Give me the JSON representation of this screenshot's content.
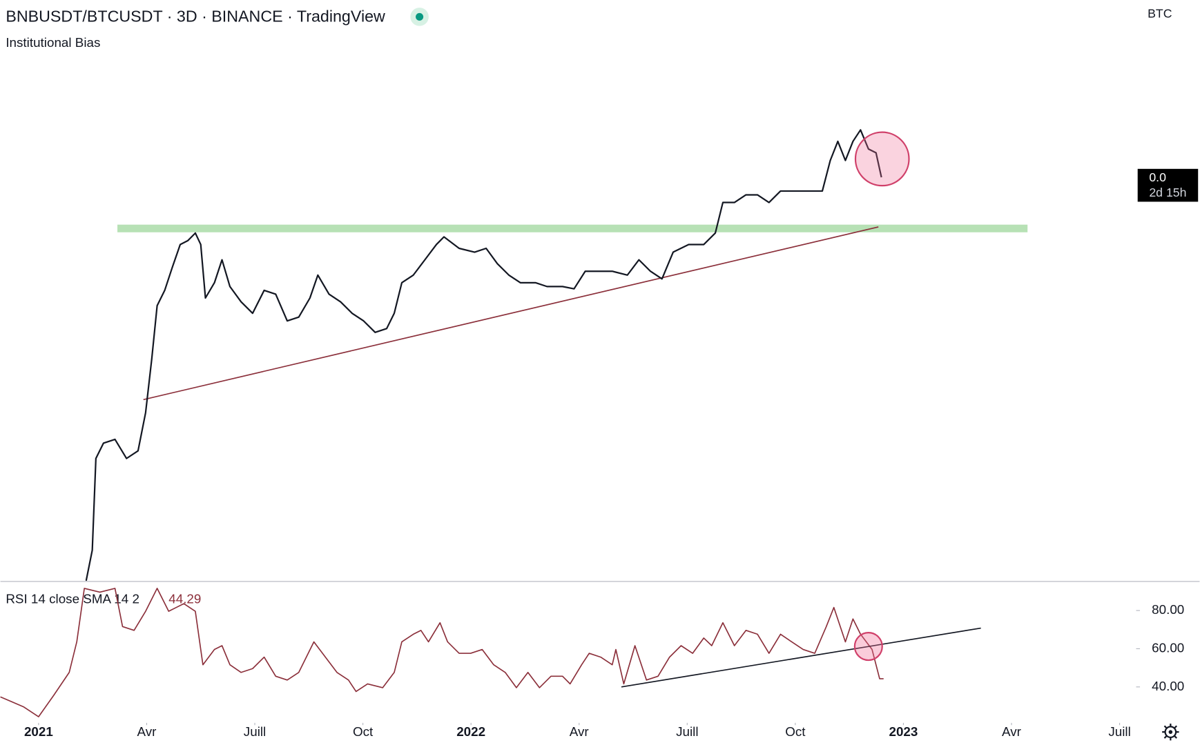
{
  "chart_data": [
    {
      "type": "line",
      "title": "BNBUSDT/BTCUSDT · 3D · BINANCE · TradingView",
      "subtitle": "Institutional Bias",
      "currency": "BTC",
      "last_label": "0.0",
      "countdown": "2d 15h",
      "color": "#131722",
      "xlim": [
        -1.06,
        32.22
      ],
      "ylim": [
        0,
        660
      ],
      "x": [
        1.32,
        1.49,
        1.59,
        1.8,
        2.12,
        2.44,
        2.76,
        2.97,
        3.14,
        3.29,
        3.5,
        3.71,
        3.93,
        4.14,
        4.35,
        4.5,
        4.63,
        4.88,
        5.09,
        5.31,
        5.62,
        5.94,
        6.26,
        6.58,
        6.9,
        7.22,
        7.53,
        7.75,
        8.06,
        8.38,
        8.7,
        9.02,
        9.34,
        9.66,
        9.87,
        10.08,
        10.4,
        10.72,
        11.04,
        11.25,
        11.67,
        12.1,
        12.42,
        12.73,
        13.05,
        13.37,
        13.79,
        14.11,
        14.54,
        14.86,
        15.17,
        15.49,
        15.92,
        16.34,
        16.66,
        16.98,
        17.3,
        17.61,
        18.04,
        18.46,
        18.78,
        18.99,
        19.31,
        19.63,
        19.95,
        20.27,
        20.59,
        21.01,
        21.43,
        21.75,
        21.97,
        22.18,
        22.39,
        22.6,
        22.81,
        23.03,
        23.24,
        23.39
      ],
      "values": [
        0,
        40,
        160,
        180,
        185,
        160,
        170,
        220,
        290,
        360,
        380,
        410,
        440,
        445,
        455,
        440,
        370,
        390,
        420,
        385,
        365,
        350,
        380,
        375,
        340,
        345,
        370,
        400,
        375,
        365,
        350,
        340,
        325,
        330,
        350,
        390,
        400,
        420,
        440,
        450,
        435,
        430,
        435,
        415,
        400,
        390,
        390,
        385,
        385,
        382,
        405,
        405,
        405,
        400,
        420,
        405,
        395,
        430,
        440,
        440,
        455,
        495,
        495,
        505,
        505,
        495,
        510,
        510,
        510,
        510,
        550,
        575,
        550,
        575,
        590,
        565,
        560,
        528
      ]
    },
    {
      "type": "line",
      "title": "RSI 14 close SMA 14 2",
      "last_value": 44.29,
      "color": "#8b2f3a",
      "xlim": [
        -1.06,
        32.22
      ],
      "ylim": [
        21.6,
        94.8
      ],
      "yticks": [
        {
          "value": 80,
          "label": "80.00"
        },
        {
          "value": 60,
          "label": "60.00"
        },
        {
          "value": 40,
          "label": "40.00"
        }
      ],
      "xticks": [
        {
          "value": 0,
          "label": "2021"
        },
        {
          "value": 3,
          "label": "Avr"
        },
        {
          "value": 6,
          "label": "Juill"
        },
        {
          "value": 9,
          "label": "Oct"
        },
        {
          "value": 12,
          "label": "2022"
        },
        {
          "value": 15,
          "label": "Avr"
        },
        {
          "value": 18,
          "label": "Juill"
        },
        {
          "value": 21,
          "label": "Oct"
        },
        {
          "value": 24,
          "label": "2023"
        },
        {
          "value": 27,
          "label": "Avr"
        },
        {
          "value": 30,
          "label": "Juill"
        }
      ],
      "x": [
        -1.06,
        -0.42,
        0,
        0.42,
        0.85,
        1.06,
        1.27,
        1.7,
        2.12,
        2.33,
        2.65,
        2.97,
        3.29,
        3.61,
        4.03,
        4.35,
        4.56,
        4.88,
        5.09,
        5.31,
        5.62,
        5.94,
        6.26,
        6.58,
        6.9,
        7.22,
        7.64,
        7.96,
        8.28,
        8.6,
        8.81,
        9.13,
        9.55,
        9.87,
        10.08,
        10.4,
        10.61,
        10.82,
        11.14,
        11.35,
        11.67,
        11.99,
        12.31,
        12.63,
        12.95,
        13.26,
        13.58,
        13.9,
        14.22,
        14.54,
        14.75,
        15.07,
        15.28,
        15.6,
        15.92,
        16.02,
        16.24,
        16.55,
        16.87,
        17.19,
        17.51,
        17.83,
        18.15,
        18.46,
        18.68,
        18.99,
        19.31,
        19.63,
        19.95,
        20.27,
        20.59,
        20.9,
        21.22,
        21.54,
        21.86,
        22.07,
        22.39,
        22.6,
        22.81,
        23.13,
        23.34,
        23.45
      ],
      "values": [
        34.8,
        29.6,
        24.4,
        35.6,
        47.6,
        63.6,
        91.6,
        89.6,
        91.6,
        71.6,
        69.6,
        79.6,
        91.6,
        79.6,
        83.6,
        79.6,
        51.6,
        59.6,
        61.6,
        51.6,
        47.6,
        49.6,
        55.6,
        45.6,
        43.6,
        47.6,
        63.6,
        55.6,
        47.6,
        43.6,
        37.6,
        41.6,
        39.6,
        47.6,
        63.6,
        67.6,
        69.6,
        63.6,
        73.6,
        63.6,
        57.6,
        57.6,
        59.6,
        51.6,
        47.6,
        39.6,
        47.6,
        39.6,
        45.6,
        45.6,
        41.6,
        51.6,
        57.6,
        55.6,
        51.6,
        59.6,
        41.6,
        61.6,
        43.6,
        45.6,
        55.6,
        61.6,
        57.6,
        65.6,
        61.6,
        73.6,
        61.6,
        69.6,
        67.6,
        57.6,
        67.6,
        63.6,
        59.6,
        57.6,
        71.6,
        81.6,
        63.6,
        75.6,
        67.6,
        59.6,
        44.29,
        44.29
      ]
    }
  ]
}
